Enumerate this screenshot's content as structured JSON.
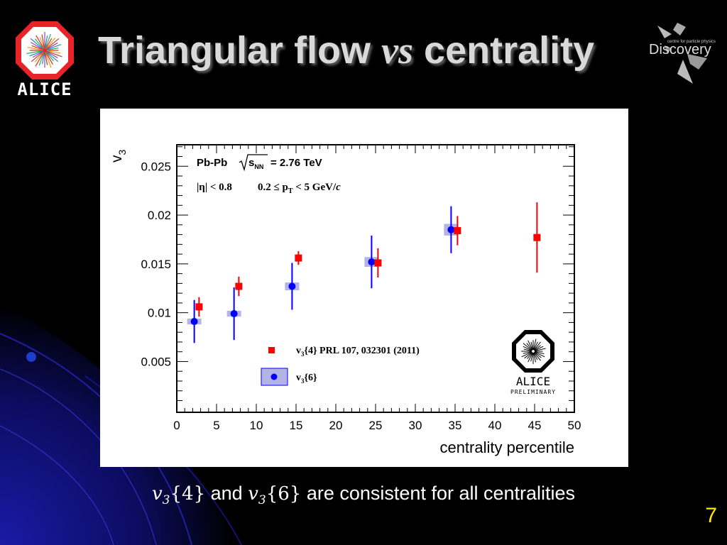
{
  "slide": {
    "title_part1": "Triangular flow ",
    "title_vs": "vs",
    "title_part2": " centrality",
    "page_number": "7",
    "caption": {
      "a_sym": "v",
      "a_sub": "3",
      "a_arg": "{4}",
      "and": " and ",
      "b_sym": "v",
      "b_sub": "3",
      "b_arg": "{6}",
      "tail": " are consistent for all centralities"
    }
  },
  "logos": {
    "alice_text": "ALICE",
    "discovery_small": "centre for particle physics",
    "discovery_text": "Discovery",
    "preliminary_alice": "ALICE",
    "preliminary_text": "PRELIMINARY"
  },
  "chart_data": {
    "type": "scatter",
    "xlabel": "centrality percentile",
    "ylabel": "v",
    "ylabel_sub": "3",
    "xlim": [
      0,
      50
    ],
    "ylim": [
      -0.0002,
      0.0272
    ],
    "xticks": [
      0,
      5,
      10,
      15,
      20,
      25,
      30,
      35,
      40,
      45,
      50
    ],
    "yticks": [
      0.005,
      0.01,
      0.015,
      0.02,
      0.025
    ],
    "ytick_labels": [
      "0.005",
      "0.01",
      "0.015",
      "0.02",
      "0.025"
    ],
    "xtick_labels": [
      "0",
      "5",
      "10",
      "15",
      "20",
      "25",
      "30",
      "35",
      "40",
      "45",
      "50"
    ],
    "grid": false,
    "annotations": {
      "line1_system": "Pb-Pb",
      "line1_energy": "= 2.76 TeV",
      "line1_sqrt_s": "s",
      "line1_nn": "NN",
      "line2_eta": "|η| < 0.8",
      "line2_pt_range": "0.2  ≤ p",
      "line2_pt_sub": "T",
      "line2_pt_tail": " < 5 GeV/",
      "line2_c": "c"
    },
    "legend_position": "bottom-center",
    "series": [
      {
        "name": "v3{4}  PRL 107, 032301 (2011)",
        "legend_v": "v",
        "legend_sub": "3",
        "legend_arg": "{4}",
        "legend_ref": "  PRL 107, 032301 (2011)",
        "color": "#ff0000",
        "marker": "square",
        "points": [
          {
            "x": 2.8,
            "y": 0.0106,
            "err": 0.001
          },
          {
            "x": 7.8,
            "y": 0.0127,
            "err": 0.001
          },
          {
            "x": 15.3,
            "y": 0.0156,
            "err": 0.0007
          },
          {
            "x": 25.3,
            "y": 0.0151,
            "err": 0.0015
          },
          {
            "x": 35.3,
            "y": 0.0184,
            "err": 0.0015
          },
          {
            "x": 45.3,
            "y": 0.0177,
            "err": 0.0036
          }
        ]
      },
      {
        "name": "v3{6}",
        "legend_v": "v",
        "legend_sub": "3",
        "legend_arg": "{6}",
        "legend_ref": "",
        "color": "#0000ff",
        "sys_color": "#b3b3e6",
        "marker": "circle",
        "points": [
          {
            "x": 2.2,
            "y": 0.0091,
            "err": 0.0022,
            "sys": 0.0003
          },
          {
            "x": 7.2,
            "y": 0.0099,
            "err": 0.0027,
            "sys": 0.0003
          },
          {
            "x": 14.5,
            "y": 0.0127,
            "err": 0.0024,
            "sys": 0.0004
          },
          {
            "x": 24.5,
            "y": 0.0152,
            "err": 0.0027,
            "sys": 0.0005
          },
          {
            "x": 34.5,
            "y": 0.0185,
            "err": 0.0024,
            "sys": 0.0006
          }
        ]
      }
    ]
  }
}
